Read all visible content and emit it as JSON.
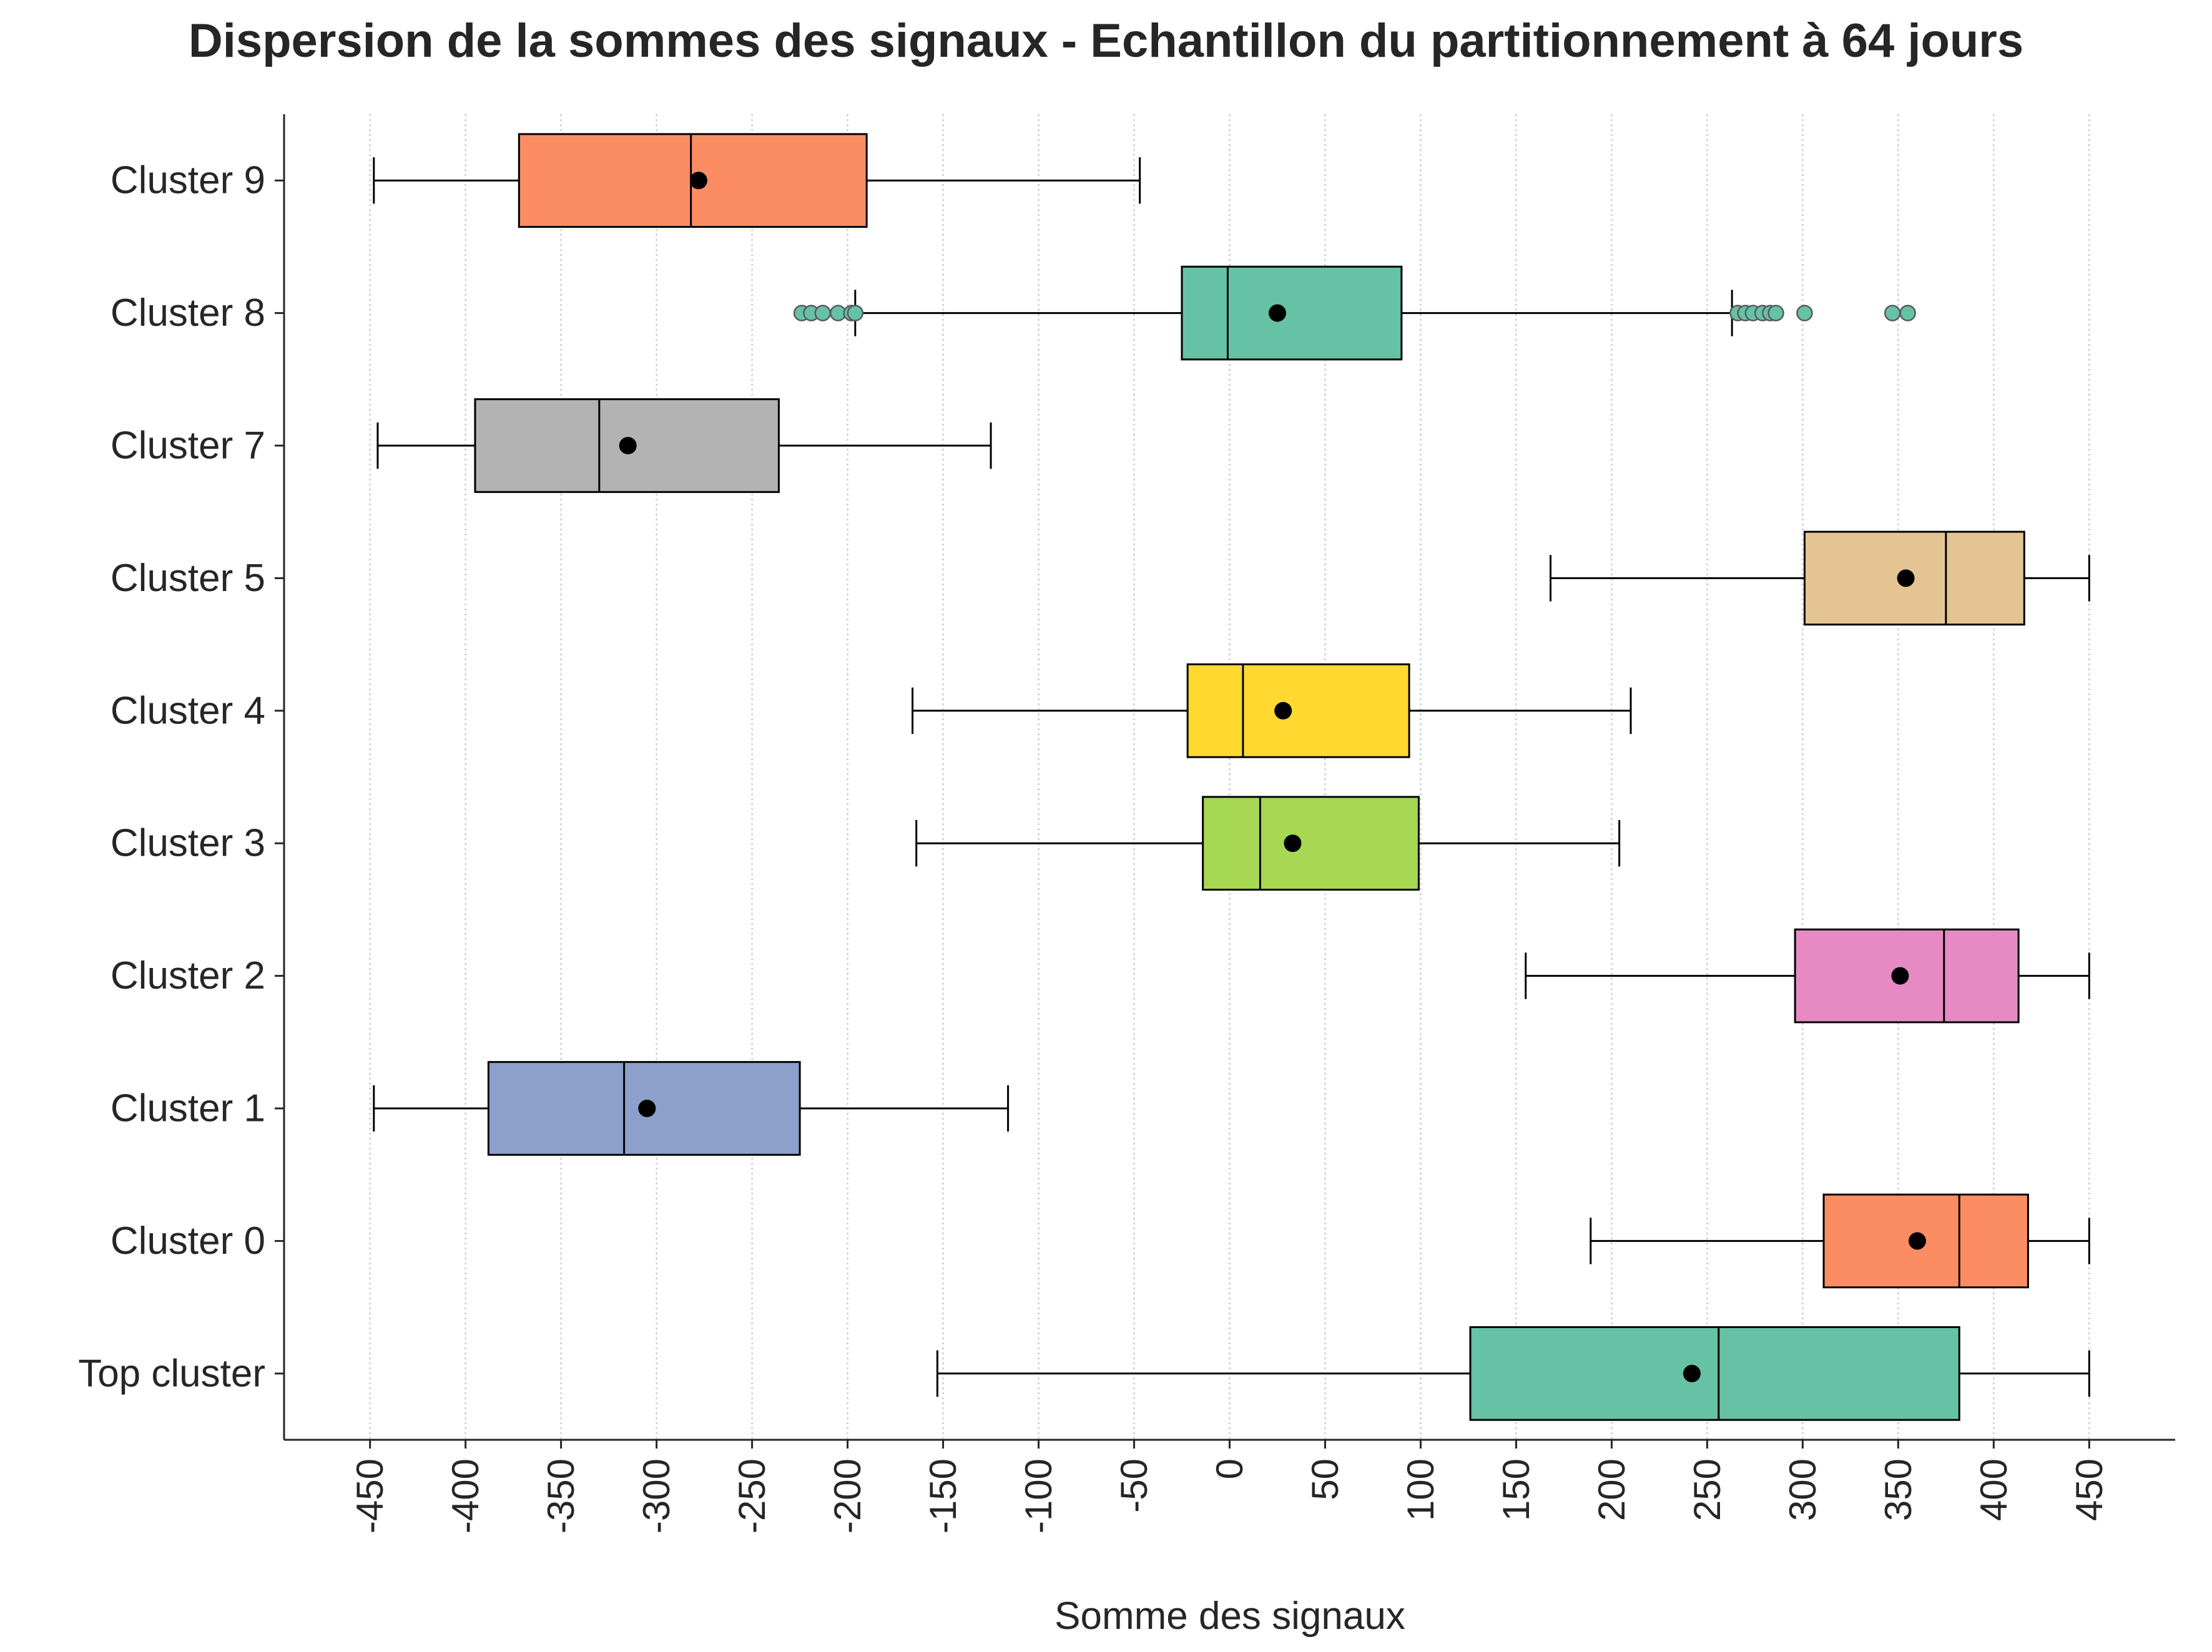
{
  "chart_data": {
    "type": "boxplot",
    "orientation": "horizontal",
    "title": "Dispersion de la sommes des signaux - Echantillon du partitionnement à 64 jours",
    "xlabel": "Somme des signaux",
    "ylabel": "",
    "xlim": [
      -495,
      495
    ],
    "xticks": [
      -450,
      -400,
      -350,
      -300,
      -250,
      -200,
      -150,
      -100,
      -50,
      0,
      50,
      100,
      150,
      200,
      250,
      300,
      350,
      400,
      450
    ],
    "grid": "vertical dotted",
    "categories": [
      "Cluster 9",
      "Cluster 8",
      "Cluster 7",
      "Cluster 5",
      "Cluster 4",
      "Cluster 3",
      "Cluster 2",
      "Cluster 1",
      "Cluster 0",
      "Top cluster"
    ],
    "boxes": [
      {
        "label": "Cluster 9",
        "whisker_low": -448,
        "q1": -372,
        "median": -282,
        "q3": -190,
        "whisker_high": -47,
        "mean": -278,
        "color": "#fc8d62",
        "outliers": []
      },
      {
        "label": "Cluster 8",
        "whisker_low": -196,
        "q1": -25,
        "median": -1,
        "q3": 90,
        "whisker_high": 263,
        "mean": 25,
        "color": "#66c2a5",
        "outliers": [
          -224,
          -219,
          -213,
          -205,
          -198,
          -196,
          266,
          270,
          274,
          279,
          283,
          286,
          301,
          347,
          355
        ]
      },
      {
        "label": "Cluster 7",
        "whisker_low": -446,
        "q1": -395,
        "median": -330,
        "q3": -236,
        "whisker_high": -125,
        "mean": -315,
        "color": "#b3b3b3",
        "outliers": []
      },
      {
        "label": "Cluster 5",
        "whisker_low": 168,
        "q1": 301,
        "median": 375,
        "q3": 416,
        "whisker_high": 450,
        "mean": 354,
        "color": "#e5c494",
        "outliers": []
      },
      {
        "label": "Cluster 4",
        "whisker_low": -166,
        "q1": -22,
        "median": 7,
        "q3": 94,
        "whisker_high": 210,
        "mean": 28,
        "color": "#ffd92f",
        "outliers": []
      },
      {
        "label": "Cluster 3",
        "whisker_low": -164,
        "q1": -14,
        "median": 16,
        "q3": 99,
        "whisker_high": 204,
        "mean": 33,
        "color": "#a6d854",
        "outliers": []
      },
      {
        "label": "Cluster 2",
        "whisker_low": 155,
        "q1": 296,
        "median": 374,
        "q3": 413,
        "whisker_high": 450,
        "mean": 351,
        "color": "#e78ac3",
        "outliers": []
      },
      {
        "label": "Cluster 1",
        "whisker_low": -448,
        "q1": -388,
        "median": -317,
        "q3": -225,
        "whisker_high": -116,
        "mean": -305,
        "color": "#8da0cb",
        "outliers": []
      },
      {
        "label": "Cluster 0",
        "whisker_low": 189,
        "q1": 311,
        "median": 382,
        "q3": 418,
        "whisker_high": 450,
        "mean": 360,
        "color": "#fc8d62",
        "outliers": []
      },
      {
        "label": "Top cluster",
        "whisker_low": -153,
        "q1": 126,
        "median": 256,
        "q3": 382,
        "whisker_high": 450,
        "mean": 242,
        "color": "#66c2a5",
        "outliers": []
      }
    ],
    "mean_marker_color": "#000000",
    "outlier_color": "#66c2a5"
  }
}
